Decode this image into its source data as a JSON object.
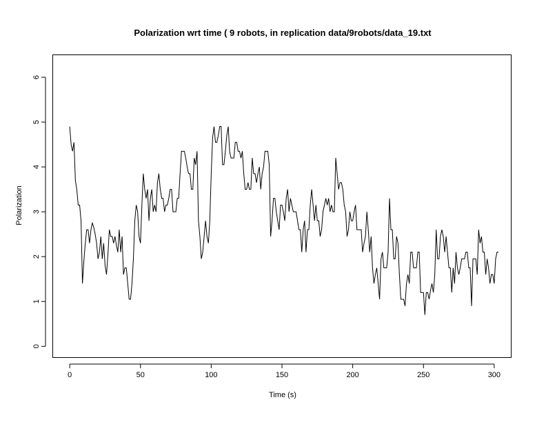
{
  "chart_data": {
    "type": "line",
    "title": "Polarization wrt time ( 9 robots, in replication  data/9robots/data_19.txt",
    "xlabel": "Time (s)",
    "ylabel": "Polarization",
    "xlim": [
      -12,
      312
    ],
    "ylim": [
      -0.25,
      6.5
    ],
    "x_ticks": [
      0,
      50,
      100,
      150,
      200,
      250,
      300
    ],
    "y_ticks": [
      0,
      1,
      2,
      3,
      4,
      5,
      6
    ],
    "x_tick_labels": [
      "0",
      "50",
      "100",
      "150",
      "200",
      "250",
      "300"
    ],
    "y_tick_labels": [
      "0",
      "1",
      "2",
      "3",
      "4",
      "5",
      "6"
    ],
    "x_step": 1,
    "colors": {
      "line": "#000000",
      "axis": "#000000",
      "background": "#ffffff"
    },
    "series": [
      {
        "name": "Polarization",
        "x_start": 0,
        "values": [
          4.9,
          4.5,
          4.35,
          4.55,
          3.7,
          3.5,
          3.15,
          3.15,
          2.8,
          1.4,
          1.9,
          2.3,
          2.6,
          2.6,
          2.3,
          2.6,
          2.75,
          2.65,
          2.5,
          2.3,
          1.95,
          2.1,
          2.45,
          1.95,
          2.3,
          1.8,
          1.6,
          2.05,
          2.6,
          2.45,
          2.45,
          2.3,
          2.45,
          2.25,
          2.1,
          2.6,
          2.1,
          2.45,
          1.6,
          1.75,
          1.75,
          1.4,
          1.05,
          1.05,
          1.4,
          1.95,
          2.8,
          3.15,
          3.0,
          2.45,
          2.3,
          3.15,
          3.85,
          3.5,
          3.3,
          3.5,
          2.8,
          3.3,
          3.5,
          3.0,
          3.15,
          3.0,
          3.65,
          3.85,
          3.5,
          3.3,
          3.3,
          3.0,
          3.15,
          3.15,
          3.3,
          3.5,
          3.5,
          3.0,
          3.0,
          3.0,
          3.3,
          3.3,
          3.85,
          4.35,
          4.35,
          4.35,
          4.2,
          4.0,
          3.85,
          3.85,
          3.5,
          3.5,
          4.2,
          4.05,
          4.35,
          2.8,
          2.45,
          1.95,
          2.1,
          2.45,
          2.8,
          2.45,
          2.3,
          2.8,
          3.85,
          4.65,
          4.9,
          4.55,
          4.55,
          4.7,
          4.9,
          4.9,
          4.05,
          4.05,
          4.35,
          4.7,
          4.9,
          4.35,
          4.2,
          4.2,
          4.2,
          4.55,
          4.55,
          4.35,
          4.35,
          4.2,
          4.35,
          3.85,
          3.5,
          3.5,
          3.65,
          3.5,
          3.5,
          4.2,
          3.85,
          3.85,
          3.65,
          3.85,
          4.0,
          3.5,
          3.85,
          4.0,
          4.35,
          4.35,
          4.35,
          4.05,
          2.45,
          2.8,
          3.3,
          3.3,
          3.0,
          2.8,
          2.6,
          3.15,
          3.15,
          3.0,
          2.8,
          3.3,
          3.5,
          3.0,
          3.3,
          3.15,
          3.0,
          3.0,
          3.0,
          2.8,
          2.6,
          2.6,
          2.1,
          2.6,
          2.8,
          2.1,
          2.6,
          2.6,
          3.15,
          3.5,
          3.15,
          2.8,
          3.15,
          2.8,
          2.8,
          2.45,
          2.6,
          3.0,
          3.15,
          3.3,
          3.15,
          3.3,
          3.0,
          3.15,
          3.0,
          3.0,
          4.2,
          3.85,
          3.5,
          3.65,
          3.65,
          3.5,
          3.15,
          3.0,
          2.45,
          2.6,
          3.0,
          2.8,
          2.8,
          3.0,
          3.15,
          2.6,
          2.6,
          2.6,
          2.6,
          2.1,
          2.3,
          2.45,
          3.0,
          2.6,
          2.1,
          2.45,
          1.75,
          1.4,
          1.6,
          1.75,
          1.4,
          1.05,
          1.95,
          2.1,
          1.75,
          1.75,
          1.75,
          2.1,
          3.3,
          2.6,
          2.6,
          1.95,
          1.95,
          2.45,
          2.3,
          1.6,
          1.05,
          1.05,
          1.05,
          0.9,
          1.4,
          1.6,
          1.4,
          2.1,
          2.1,
          1.75,
          1.75,
          1.75,
          2.1,
          2.1,
          1.2,
          1.2,
          1.2,
          0.7,
          1.2,
          1.2,
          1.05,
          1.25,
          1.4,
          1.2,
          1.6,
          2.6,
          1.95,
          1.95,
          2.45,
          2.6,
          2.45,
          2.1,
          2.45,
          2.1,
          1.75,
          1.75,
          1.2,
          1.75,
          1.4,
          2.1,
          1.75,
          1.6,
          1.75,
          1.95,
          1.95,
          1.95,
          2.1,
          2.1,
          1.75,
          1.75,
          0.9,
          1.95,
          1.95,
          1.95,
          1.6,
          2.6,
          2.3,
          2.45,
          2.1,
          2.1,
          1.6,
          1.95,
          1.75,
          1.4,
          1.6,
          1.6,
          1.4,
          1.95,
          2.1,
          2.1
        ]
      }
    ]
  }
}
